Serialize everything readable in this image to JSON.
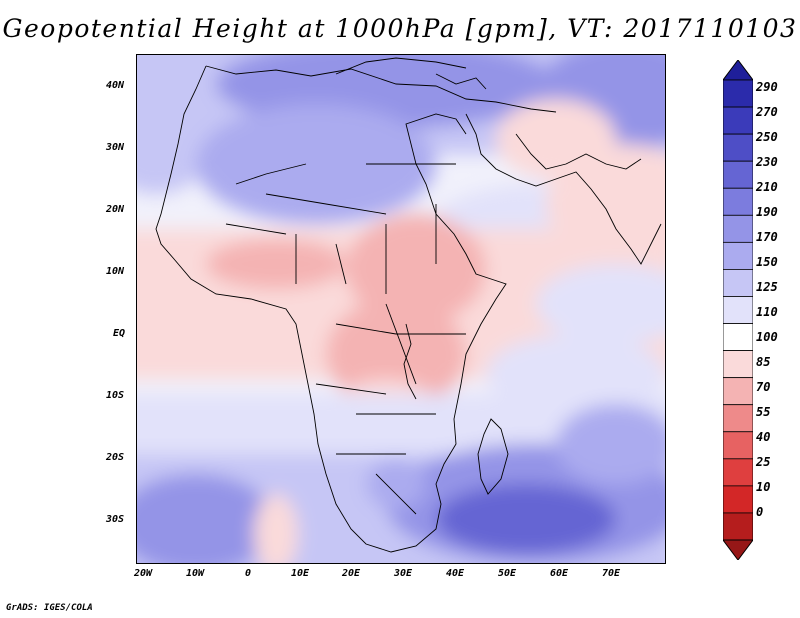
{
  "title": "Geopotential Height at 1000hPa [gpm], VT: 2017110103",
  "footer": "GrADS: IGES/COLA",
  "axes": {
    "y_labels": [
      "40N",
      "30N",
      "20N",
      "10N",
      "EQ",
      "10S",
      "20S",
      "30S"
    ],
    "x_labels": [
      "20W",
      "10W",
      "0",
      "10E",
      "20E",
      "30E",
      "40E",
      "50E",
      "60E",
      "70E"
    ]
  },
  "legend": {
    "levels": [
      "290",
      "270",
      "250",
      "230",
      "210",
      "190",
      "170",
      "150",
      "125",
      "110",
      "100",
      "85",
      "70",
      "55",
      "40",
      "25",
      "10",
      "0"
    ],
    "colors": [
      "#1f1f9a",
      "#2b2bab",
      "#3b3bba",
      "#4e4ec6",
      "#6565d3",
      "#7c7cde",
      "#9494e7",
      "#ababef",
      "#c6c6f5",
      "#e2e2fa",
      "#ffffff",
      "#fadada",
      "#f4b3b3",
      "#ee8a8a",
      "#e76262",
      "#df3f3f",
      "#d32727",
      "#b51d1d",
      "#961717"
    ]
  },
  "colors": {
    "strong_low": "#961717",
    "strong_high": "#1f1f9a",
    "neutral": "#ffffff"
  }
}
